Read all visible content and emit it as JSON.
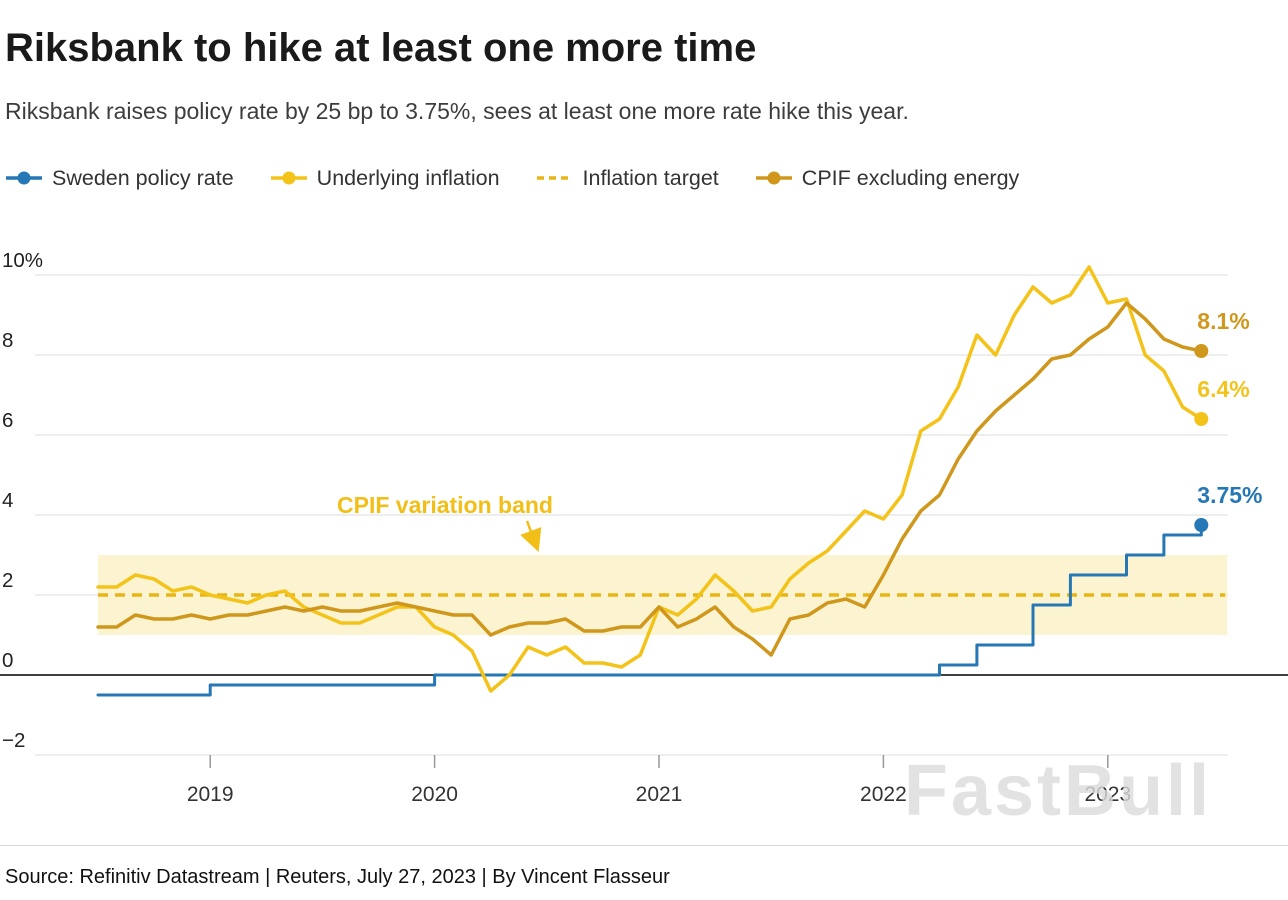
{
  "header": {
    "title": "Riksbank to hike at least one more time",
    "subtitle": "Riksbank raises policy rate by 25 bp to 3.75%, sees at least one more rate hike this year."
  },
  "legend": [
    {
      "label": "Sweden policy rate",
      "color": "#2577b5",
      "style": "solid-dot"
    },
    {
      "label": "Underlying inflation",
      "color": "#f3c31a",
      "style": "solid-dot"
    },
    {
      "label": "Inflation target",
      "color": "#e8b515",
      "style": "dashed"
    },
    {
      "label": "CPIF excluding energy",
      "color": "#cf981d",
      "style": "solid-dot"
    }
  ],
  "chart_data": {
    "type": "line",
    "x_unit": "month",
    "x_start": "2018-07",
    "x_end": "2023-06",
    "x_tick_labels": [
      "2019",
      "2020",
      "2021",
      "2022",
      "2023"
    ],
    "x_tick_indices": [
      6,
      18,
      30,
      42,
      54
    ],
    "ylim": [
      -2,
      10
    ],
    "y_ticks": [
      10,
      8,
      6,
      4,
      2,
      0,
      -2
    ],
    "y_tick_labels": [
      "10%",
      "8",
      "6",
      "4",
      "2",
      "0",
      "−2"
    ],
    "grid": true,
    "inflation_target": 2,
    "band": {
      "label": "CPIF variation band",
      "from": 1,
      "to": 3,
      "fill": "#fcf4d1",
      "annotation_color": "#f2be18"
    },
    "series": [
      {
        "name": "Sweden policy rate",
        "color": "#2577b5",
        "width": 3,
        "step": true,
        "end_label": "3.75%",
        "values": [
          -0.5,
          -0.5,
          -0.5,
          -0.5,
          -0.5,
          -0.5,
          -0.25,
          -0.25,
          -0.25,
          -0.25,
          -0.25,
          -0.25,
          -0.25,
          -0.25,
          -0.25,
          -0.25,
          -0.25,
          -0.25,
          0,
          0,
          0,
          0,
          0,
          0,
          0,
          0,
          0,
          0,
          0,
          0,
          0,
          0,
          0,
          0,
          0,
          0,
          0,
          0,
          0,
          0,
          0,
          0,
          0,
          0,
          0,
          0.25,
          0.25,
          0.75,
          0.75,
          0.75,
          1.75,
          1.75,
          2.5,
          2.5,
          2.5,
          3.0,
          3.0,
          3.5,
          3.5,
          3.75
        ]
      },
      {
        "name": "Underlying inflation",
        "color": "#f3c31a",
        "width": 3.5,
        "step": false,
        "end_label": "6.4%",
        "values": [
          2.2,
          2.2,
          2.5,
          2.4,
          2.1,
          2.2,
          2.0,
          1.9,
          1.8,
          2.0,
          2.1,
          1.7,
          1.5,
          1.3,
          1.3,
          1.5,
          1.7,
          1.7,
          1.2,
          1.0,
          0.6,
          -0.4,
          0.0,
          0.7,
          0.5,
          0.7,
          0.3,
          0.3,
          0.2,
          0.5,
          1.7,
          1.5,
          1.9,
          2.5,
          2.1,
          1.6,
          1.7,
          2.4,
          2.8,
          3.1,
          3.6,
          4.1,
          3.9,
          4.5,
          6.1,
          6.4,
          7.2,
          8.5,
          8.0,
          9.0,
          9.7,
          9.3,
          9.5,
          10.2,
          9.3,
          9.4,
          8.0,
          7.6,
          6.7,
          6.4
        ]
      },
      {
        "name": "CPIF excluding energy",
        "color": "#cf981d",
        "width": 3.5,
        "step": false,
        "end_label": "8.1%",
        "values": [
          1.2,
          1.2,
          1.5,
          1.4,
          1.4,
          1.5,
          1.4,
          1.5,
          1.5,
          1.6,
          1.7,
          1.6,
          1.7,
          1.6,
          1.6,
          1.7,
          1.8,
          1.7,
          1.6,
          1.5,
          1.5,
          1.0,
          1.2,
          1.3,
          1.3,
          1.4,
          1.1,
          1.1,
          1.2,
          1.2,
          1.7,
          1.2,
          1.4,
          1.7,
          1.2,
          0.9,
          0.5,
          1.4,
          1.5,
          1.8,
          1.9,
          1.7,
          2.5,
          3.4,
          4.1,
          4.5,
          5.4,
          6.1,
          6.6,
          7.0,
          7.4,
          7.9,
          8.0,
          8.4,
          8.7,
          9.3,
          8.9,
          8.4,
          8.2,
          8.1
        ]
      }
    ]
  },
  "watermark": "FastBull",
  "source": "Source: Refinitiv Datastream | Reuters, July 27, 2023 | By Vincent Flasseur"
}
